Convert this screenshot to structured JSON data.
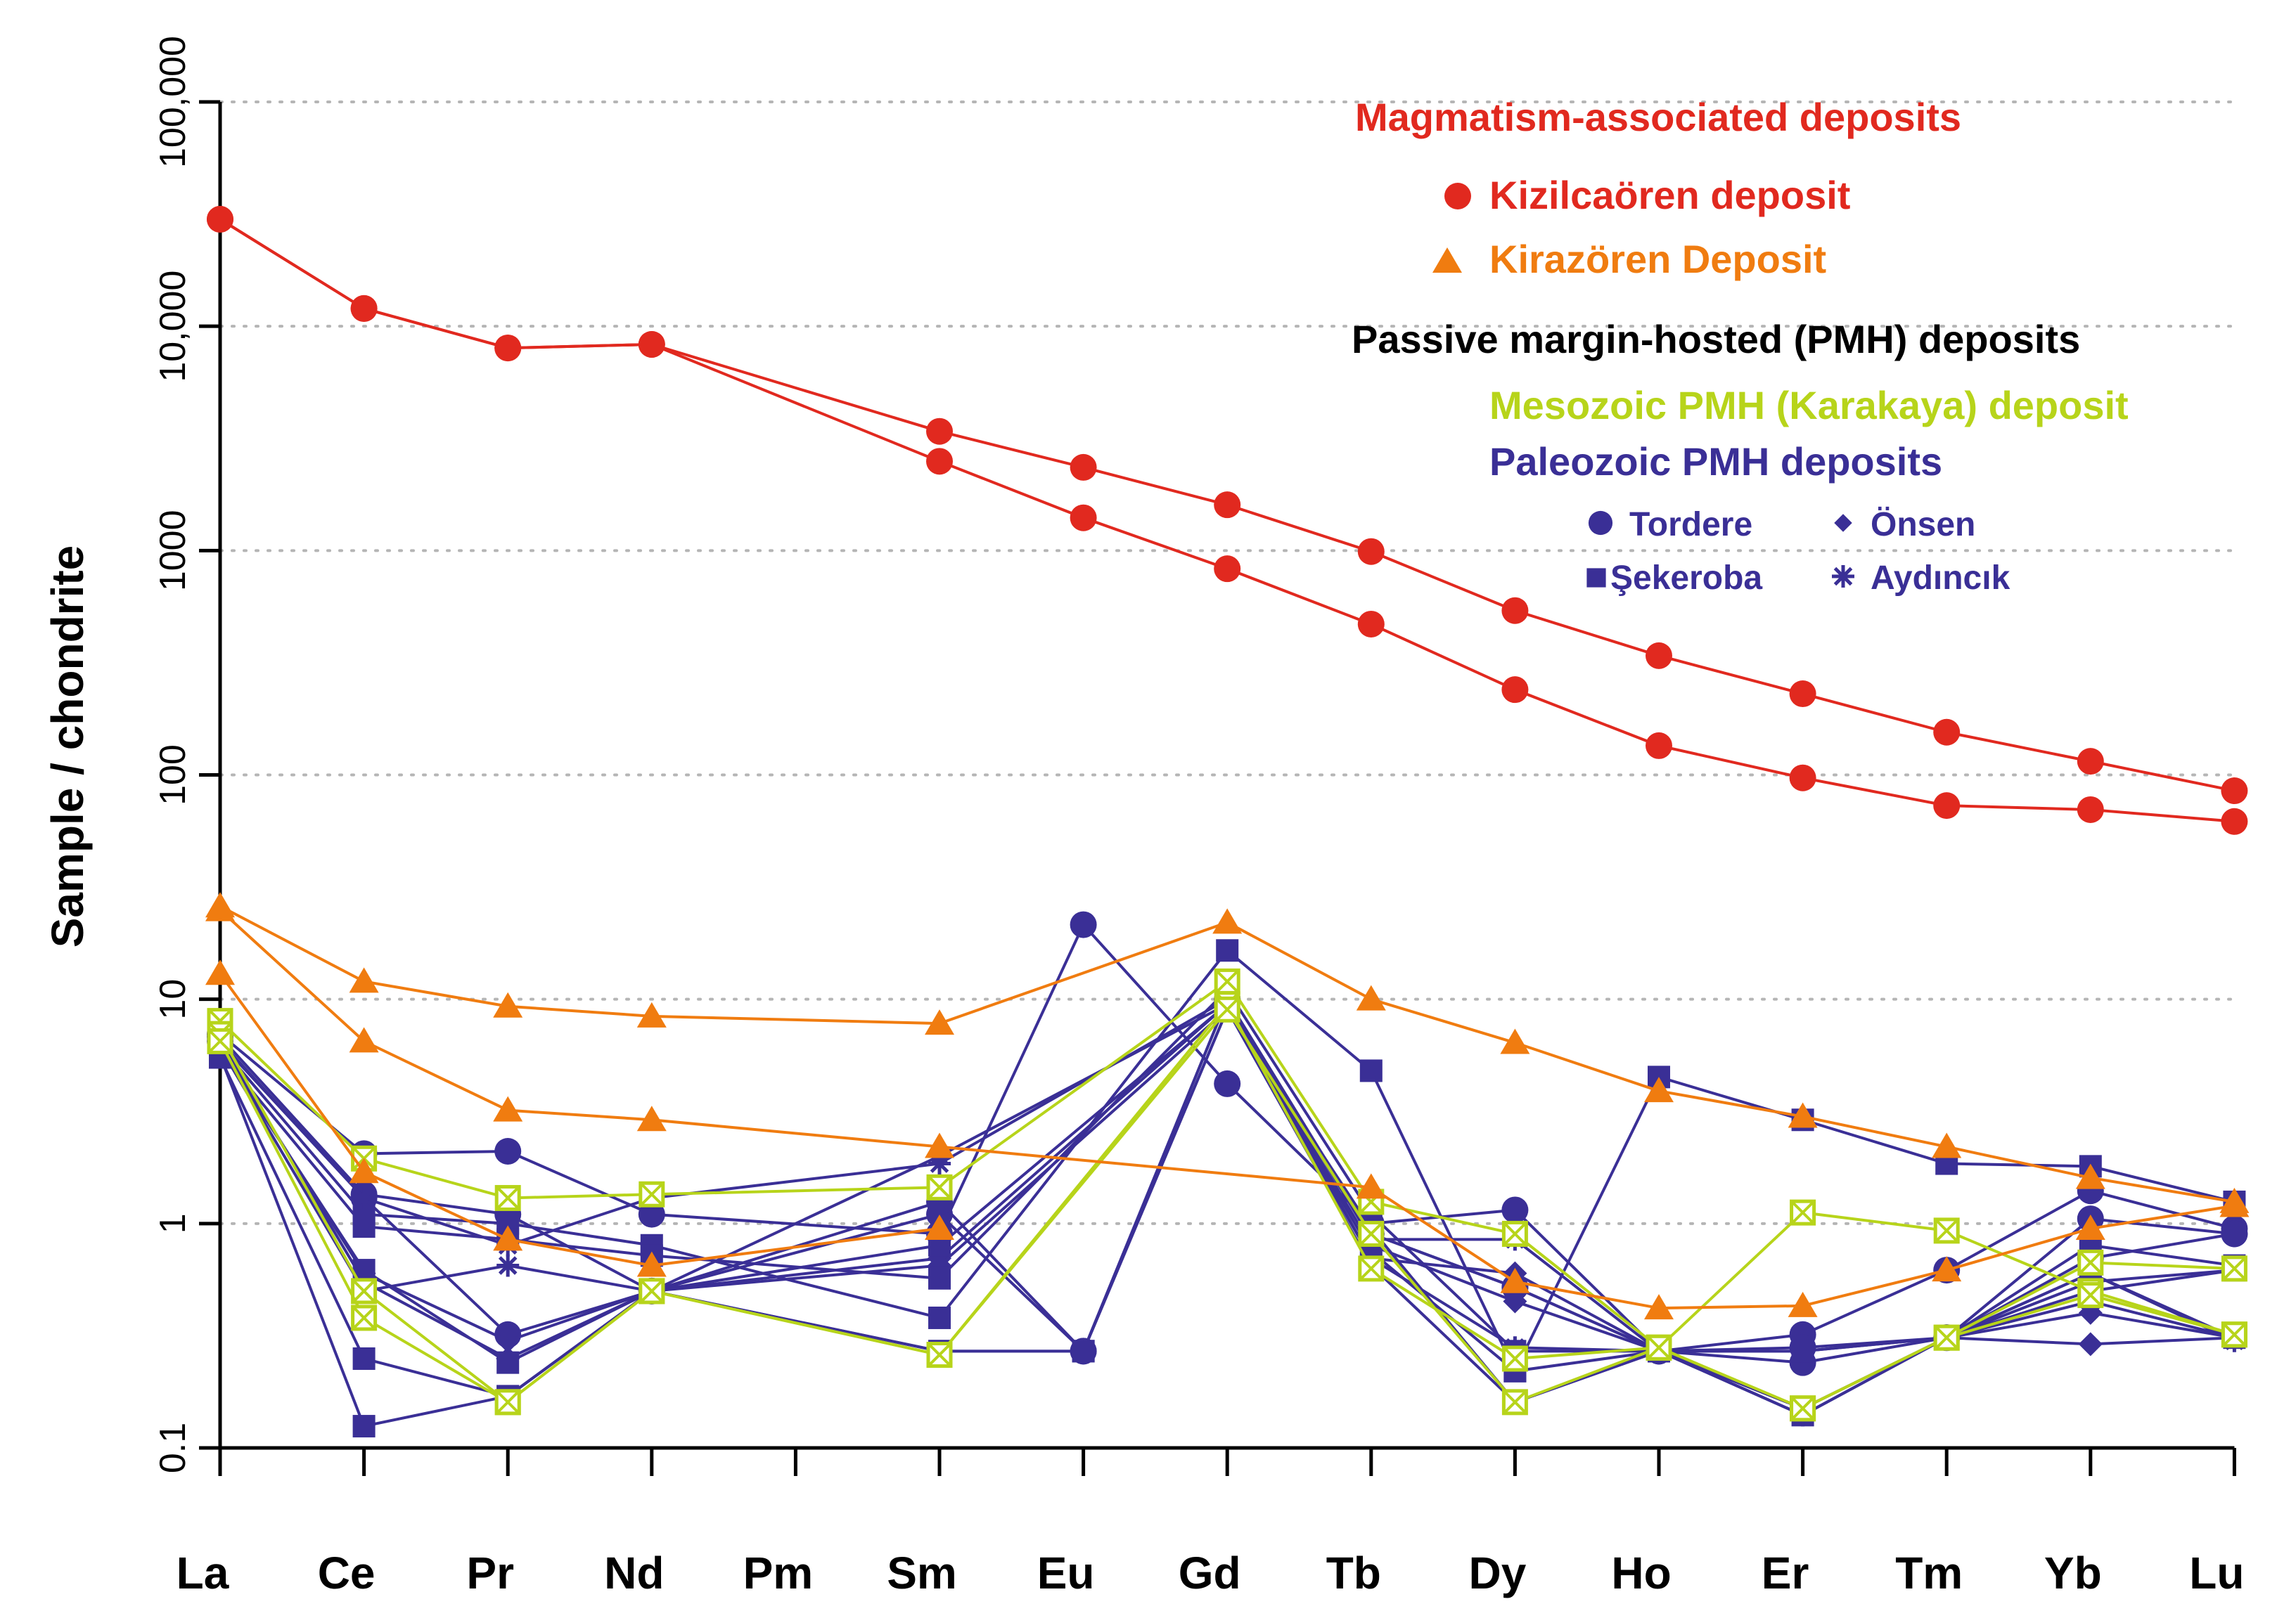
{
  "chart_data": {
    "type": "line",
    "scale": "log",
    "ylabel": "Sample / chondrite",
    "xlabel": "",
    "ylim": [
      0.1,
      100000
    ],
    "grid": true,
    "categories": [
      "La",
      "Ce",
      "Pr",
      "Nd",
      "Pm",
      "Sm",
      "Eu",
      "Gd",
      "Tb",
      "Dy",
      "Ho",
      "Er",
      "Tm",
      "Yb",
      "Lu"
    ],
    "y_ticks": [
      {
        "value": 0.1,
        "label": "0.1"
      },
      {
        "value": 1,
        "label": "1"
      },
      {
        "value": 10,
        "label": "10"
      },
      {
        "value": 100,
        "label": "100"
      },
      {
        "value": 1000,
        "label": "1000"
      },
      {
        "value": 10000,
        "label": "10,000"
      },
      {
        "value": 100000,
        "label": "100,000"
      }
    ],
    "legend": {
      "placement": "top-right",
      "heading_magmatism": "Magmatism-associated deposits",
      "kizilcaoren": "Kizilcaören deposit",
      "kirazoren": "Kirazören Deposit",
      "heading_pmh": "Passive margin-hosted (PMH) deposits",
      "mesozoic": "Mesozoic PMH (Karakaya) deposit",
      "paleozoic": "Paleozoic PMH deposits",
      "tordere": "Tordere",
      "onsen": "Önsen",
      "sekeroba": "Şekeroba",
      "aydincik": "Aydıncık"
    },
    "colors": {
      "red": "#e1291f",
      "orange": "#f07c10",
      "green": "#b7d41a",
      "navy": "#3a2f96",
      "black": "#000000",
      "grid": "#b5b5b5"
    },
    "series": [
      {
        "name": "Kizilcaören 1",
        "group": "kizilcaoren",
        "marker": "circle",
        "values": [
          30000,
          12000,
          8000,
          8300,
          null,
          3400,
          2350,
          1600,
          990,
          540,
          340,
          230,
          155,
          115,
          85
        ]
      },
      {
        "name": "Kizilcaören 2",
        "group": "kizilcaoren",
        "marker": "circle",
        "values": [
          30000,
          12000,
          8000,
          8300,
          null,
          2500,
          1400,
          830,
          470,
          240,
          135,
          97,
          73,
          70,
          62
        ]
      },
      {
        "name": "Kirazören 1",
        "group": "kirazoren",
        "marker": "triangle",
        "values": [
          26,
          12,
          9.3,
          8.4,
          null,
          7.8,
          null,
          22,
          10,
          6.4,
          3.9,
          3.0,
          2.2,
          1.6,
          1.25
        ]
      },
      {
        "name": "Kirazören 2",
        "group": "kirazoren",
        "marker": "triangle",
        "values": [
          25,
          6.5,
          3.2,
          2.9,
          null,
          2.2,
          null,
          null,
          1.45,
          0.55,
          0.42,
          0.43,
          0.62,
          0.95,
          1.2
        ]
      },
      {
        "name": "Kirazören 3",
        "group": "kirazoren",
        "marker": "triangle",
        "values": [
          13,
          1.7,
          0.85,
          0.65,
          null,
          0.95,
          null,
          null,
          null,
          null,
          null,
          null,
          null,
          null,
          null
        ]
      },
      {
        "name": "Tordere 1",
        "group": "tordere",
        "marker": "circle",
        "values": [
          7,
          2.05,
          2.1,
          1.1,
          null,
          0.9,
          21.5,
          4.2,
          1.0,
          1.15,
          0.27,
          0.32,
          0.62,
          1.4,
          0.95
        ]
      },
      {
        "name": "Tordere 2",
        "group": "tordere",
        "marker": "circle",
        "values": [
          6.5,
          1.3,
          0.32,
          0.5,
          null,
          1.1,
          0.27,
          10,
          0.9,
          0.52,
          0.27,
          0.24,
          0.31,
          1.05,
          0.9
        ]
      },
      {
        "name": "Tordere 3",
        "group": "tordere",
        "marker": "circle",
        "values": [
          6.8,
          1.35,
          1.1,
          0.5,
          null,
          1.25,
          0.27,
          10,
          0.9,
          0.52,
          0.27,
          0.28,
          0.31,
          0.7,
          0.9
        ]
      },
      {
        "name": "Önsen 1",
        "group": "onsen",
        "marker": "diamond",
        "values": [
          6.6,
          0.55,
          0.25,
          0.5,
          null,
          0.7,
          null,
          9.5,
          0.8,
          0.45,
          0.27,
          0.15,
          0.31,
          0.29,
          0.31
        ]
      },
      {
        "name": "Önsen 2",
        "group": "onsen",
        "marker": "diamond",
        "values": [
          6.2,
          0.6,
          0.3,
          0.5,
          null,
          0.65,
          null,
          9,
          0.7,
          0.6,
          0.27,
          0.15,
          0.31,
          0.4,
          0.31
        ]
      },
      {
        "name": "Şekeroba 1",
        "group": "sekeroba",
        "marker": "square",
        "values": [
          6.2,
          1.1,
          1.0,
          0.8,
          null,
          0.38,
          null,
          16.5,
          4.8,
          0.22,
          4.5,
          2.9,
          1.85,
          1.8,
          1.25
        ]
      },
      {
        "name": "Şekeroba 2",
        "group": "sekeroba",
        "marker": "square",
        "values": [
          5.8,
          0.97,
          0.85,
          0.72,
          null,
          0.57,
          null,
          11,
          1.1,
          0.27,
          0.27,
          0.27,
          0.31,
          0.8,
          0.65
        ]
      },
      {
        "name": "Şekeroba 3",
        "group": "sekeroba",
        "marker": "square",
        "values": [
          6.0,
          0.62,
          0.24,
          0.5,
          null,
          0.27,
          0.27,
          9,
          0.95,
          0.16,
          0.27,
          0.15,
          0.31,
          0.55,
          0.62
        ]
      },
      {
        "name": "Şekeroba 4",
        "group": "sekeroba",
        "marker": "square",
        "values": [
          5.5,
          0.25,
          0.17,
          0.5,
          null,
          0.27,
          0.27,
          9,
          0.65,
          0.16,
          0.27,
          0.14,
          0.31,
          0.5,
          0.62
        ]
      },
      {
        "name": "Şekeroba 5",
        "group": "sekeroba",
        "marker": "square",
        "values": [
          5.6,
          0.125,
          0.17,
          0.5,
          null,
          0.8,
          null,
          9.5,
          0.75,
          0.22,
          0.27,
          0.27,
          0.31,
          0.6,
          0.31
        ]
      },
      {
        "name": "Aydıncık 1",
        "group": "aydincik",
        "marker": "asterisk",
        "values": [
          6.4,
          1.3,
          0.8,
          1.3,
          null,
          1.85,
          null,
          10,
          0.85,
          0.85,
          0.27,
          0.14,
          0.31,
          0.45,
          0.31
        ]
      },
      {
        "name": "Aydıncık 2",
        "group": "aydincik",
        "marker": "asterisk",
        "values": [
          6.1,
          0.5,
          0.65,
          0.5,
          null,
          2.0,
          null,
          9.5,
          0.7,
          0.28,
          0.27,
          0.14,
          0.31,
          0.6,
          0.3
        ]
      },
      {
        "name": "Mesozoic 1",
        "group": "mesozoic",
        "marker": "xsquare",
        "values": [
          8,
          1.95,
          1.3,
          1.35,
          null,
          1.45,
          null,
          12,
          1.25,
          0.9,
          0.28,
          1.12,
          0.93,
          0.5,
          0.32
        ]
      },
      {
        "name": "Mesozoic 2",
        "group": "mesozoic",
        "marker": "xsquare",
        "values": [
          7,
          0.5,
          0.16,
          0.5,
          null,
          0.26,
          null,
          9.5,
          0.63,
          0.25,
          0.28,
          0.15,
          0.31,
          0.67,
          0.63
        ]
      },
      {
        "name": "Mesozoic 3",
        "group": "mesozoic",
        "marker": "xsquare",
        "values": [
          6.5,
          0.38,
          0.16,
          0.5,
          null,
          0.26,
          null,
          9,
          0.9,
          0.16,
          0.28,
          0.15,
          0.31,
          0.48,
          0.32
        ]
      }
    ]
  }
}
